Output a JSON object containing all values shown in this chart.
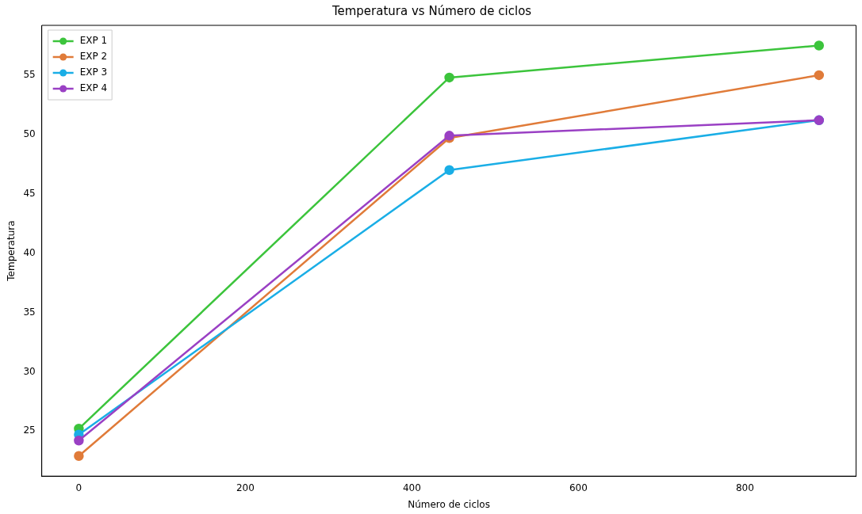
{
  "chart_data": {
    "type": "line",
    "title": "Temperatura vs Número de ciclos",
    "xlabel": "Número de ciclos",
    "ylabel": "Temperatura",
    "x": [
      0,
      445,
      889
    ],
    "series": [
      {
        "name": "EXP 1",
        "color": "#3cc43c",
        "values": [
          25.2,
          54.8,
          57.5
        ]
      },
      {
        "name": "EXP 2",
        "color": "#e07b39",
        "values": [
          22.9,
          49.7,
          55.0
        ]
      },
      {
        "name": "EXP 3",
        "color": "#1aaee6",
        "values": [
          24.7,
          47.0,
          51.2
        ]
      },
      {
        "name": "EXP 4",
        "color": "#9a40c4",
        "values": [
          24.2,
          49.9,
          51.2
        ]
      }
    ],
    "xlim": [
      -44.5,
      933.5
    ],
    "ylim": [
      21.2,
      59.2
    ],
    "xticks": [
      0,
      200,
      400,
      600,
      800
    ],
    "yticks": [
      25,
      30,
      35,
      40,
      45,
      50,
      55
    ],
    "grid": false,
    "legend": "top left",
    "marker": "circle",
    "line_style": "solid"
  }
}
